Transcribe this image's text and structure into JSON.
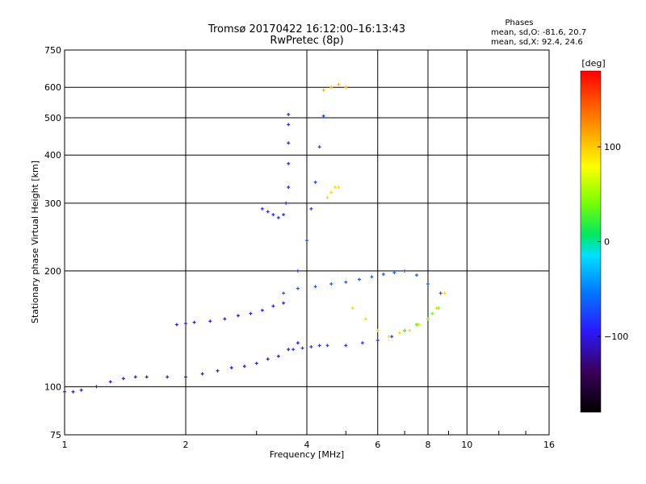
{
  "header": {
    "title": "Tromsø 20170422 16:12:00–16:13:43",
    "subtitle": "RwPretec (8p)"
  },
  "stats": {
    "heading": "Phases",
    "line_o": "mean, sd,O: -81.6, 20.7",
    "line_x": "mean, sd,X:  92.4, 24.6"
  },
  "chart_data": {
    "type": "scatter",
    "title": "Tromsø 20170422 16:12:00–16:13:43",
    "subtitle": "RwPretec (8p)",
    "xlabel": "Frequency [MHz]",
    "ylabel": "Stationary phase Virtual Height [km]",
    "x_scale": "log",
    "y_scale": "log",
    "xlim": [
      1,
      16
    ],
    "ylim": [
      75,
      750
    ],
    "x_ticks": [
      1,
      2,
      4,
      6,
      8,
      10,
      16
    ],
    "x_tick_labels": [
      "1",
      "2",
      "4",
      "6",
      "8",
      "10",
      "16"
    ],
    "y_ticks": [
      75,
      100,
      200,
      300,
      400,
      500,
      600,
      750
    ],
    "y_tick_labels": [
      "75",
      "100",
      "200",
      "300",
      "400",
      "500",
      "600",
      "750"
    ],
    "grid": true,
    "colorbar": {
      "label": "[deg]",
      "range": [
        -180,
        180
      ],
      "ticks": [
        -100,
        0,
        100
      ],
      "tick_labels": [
        "−100",
        "0",
        "100"
      ]
    },
    "series": [
      {
        "group": "O-trace lower",
        "x": [
          1.0,
          1.05,
          1.1,
          1.2,
          1.3,
          1.4,
          1.5,
          1.6,
          1.8,
          2.0,
          2.2,
          2.4,
          2.6,
          2.8,
          3.0,
          3.2,
          3.4,
          3.6,
          3.8
        ],
        "y": [
          97,
          97,
          98,
          100,
          103,
          105,
          106,
          106,
          106,
          106,
          108,
          110,
          112,
          113,
          115,
          118,
          120,
          125,
          130
        ],
        "phase": -110
      },
      {
        "group": "O-trace E layer",
        "x": [
          1.9,
          2.0,
          2.1,
          2.3,
          2.5,
          2.7,
          2.9,
          3.1,
          3.3,
          3.5
        ],
        "y": [
          145,
          146,
          147,
          148,
          150,
          153,
          155,
          158,
          162,
          165
        ],
        "phase": -105
      },
      {
        "group": "O-trace F cusp",
        "x": [
          3.1,
          3.2,
          3.3,
          3.4,
          3.5,
          3.55,
          3.6,
          3.6,
          3.6,
          3.6,
          3.6
        ],
        "y": [
          290,
          285,
          280,
          275,
          280,
          300,
          330,
          380,
          430,
          480,
          510
        ],
        "phase": -95
      },
      {
        "group": "O-trace F2",
        "x": [
          3.7,
          3.9,
          4.1,
          4.3,
          4.5,
          5.0,
          5.5,
          6.0,
          6.5,
          7.0,
          7.5,
          8.0
        ],
        "y": [
          125,
          126,
          127,
          128,
          128,
          128,
          130,
          132,
          135,
          140,
          145,
          150
        ],
        "phase": -90
      },
      {
        "group": "O-trace high",
        "x": [
          3.8,
          4.0,
          4.1,
          4.2,
          4.3,
          4.4
        ],
        "y": [
          200,
          240,
          290,
          340,
          420,
          505
        ],
        "phase": -85
      },
      {
        "group": "O-trace mid F",
        "x": [
          3.5,
          3.8,
          4.2,
          4.6,
          5.0,
          5.4,
          5.8,
          6.2,
          6.6,
          7.0,
          7.5,
          8.0,
          8.6
        ],
        "y": [
          175,
          180,
          182,
          185,
          187,
          190,
          193,
          196,
          198,
          200,
          195,
          185,
          175
        ],
        "phase": -75
      },
      {
        "group": "X-trace",
        "x": [
          4.5,
          4.6,
          4.7,
          4.8,
          5.2,
          5.6,
          6.0,
          6.4,
          6.8,
          7.2,
          7.6,
          8.0,
          8.4,
          8.8
        ],
        "y": [
          310,
          320,
          330,
          330,
          160,
          150,
          140,
          135,
          138,
          140,
          145,
          150,
          160,
          175
        ],
        "phase": 95
      },
      {
        "group": "X-trace upper",
        "x": [
          4.4,
          4.6,
          4.8,
          5.0
        ],
        "y": [
          590,
          600,
          610,
          600
        ],
        "phase": 110
      },
      {
        "group": "green cluster",
        "x": [
          7.0,
          7.5,
          8.0,
          8.2,
          8.5
        ],
        "y": [
          140,
          145,
          150,
          155,
          160
        ],
        "phase": 40
      }
    ]
  }
}
